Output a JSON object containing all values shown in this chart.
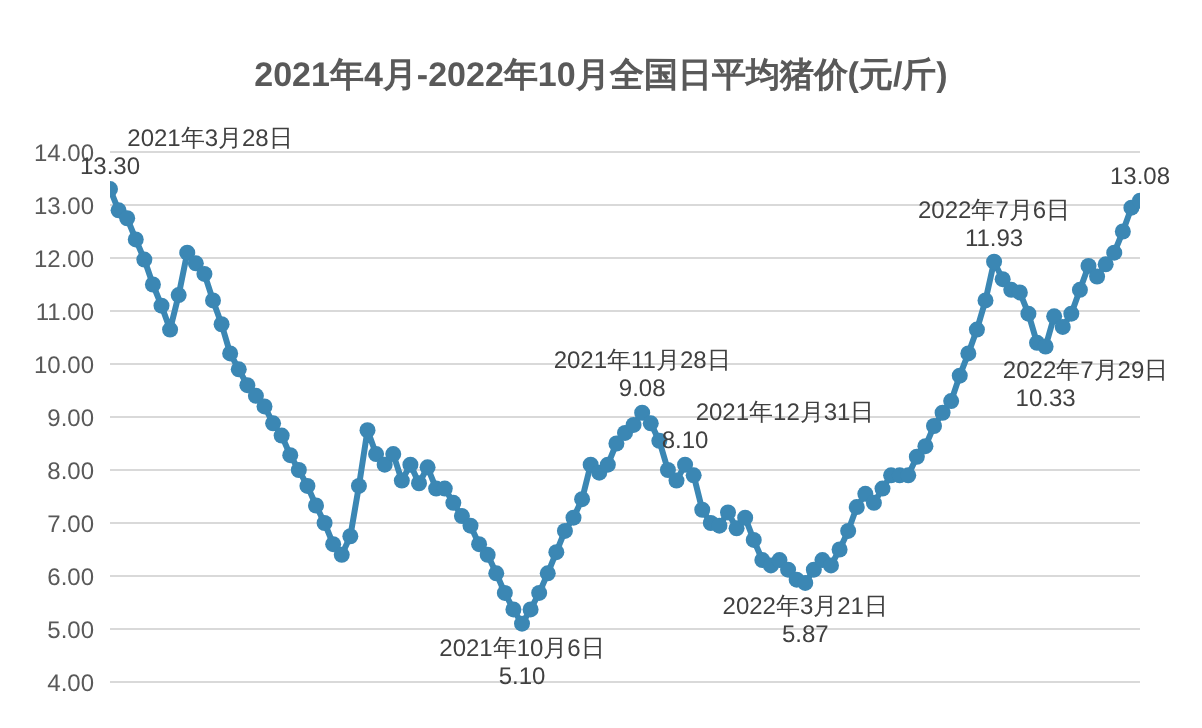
{
  "chart_data": {
    "type": "line",
    "title": "2021年4月-2022年10月全国日平均猪价(元/斤)",
    "categories": [
      null,
      null,
      null,
      null,
      null,
      null,
      null,
      null,
      null,
      null,
      null,
      null,
      null,
      null,
      null,
      null,
      null,
      null,
      null,
      null,
      null,
      null,
      null,
      null,
      null,
      null,
      null,
      null,
      null,
      null,
      null,
      null,
      null,
      null,
      null,
      null,
      null,
      null,
      null,
      null,
      null,
      null,
      null,
      null,
      null,
      null,
      null,
      null,
      null,
      null,
      null,
      null,
      null,
      null,
      null,
      null,
      null,
      null,
      null,
      null,
      null,
      null,
      null,
      null,
      null,
      null,
      null,
      null,
      null,
      null,
      null,
      null,
      null,
      null,
      null,
      null,
      null,
      null,
      null,
      null,
      null,
      null,
      null,
      null,
      null,
      null,
      null,
      null,
      null,
      null,
      null,
      null,
      null,
      null,
      null,
      null,
      null,
      null,
      null,
      null,
      null,
      null,
      null,
      null,
      null,
      null,
      null,
      null,
      null,
      null,
      null,
      null,
      null,
      null,
      null,
      null,
      null,
      null,
      null,
      null,
      null
    ],
    "values": [
      13.3,
      12.9,
      12.75,
      12.35,
      11.97,
      11.5,
      11.1,
      10.65,
      11.3,
      12.1,
      11.9,
      11.7,
      11.2,
      10.75,
      10.2,
      9.9,
      9.6,
      9.4,
      9.2,
      8.88,
      8.65,
      8.28,
      8.0,
      7.7,
      7.33,
      7.0,
      6.6,
      6.4,
      6.75,
      7.7,
      8.75,
      8.3,
      8.1,
      8.3,
      7.8,
      8.1,
      7.75,
      8.05,
      7.65,
      7.65,
      7.38,
      7.13,
      6.95,
      6.6,
      6.4,
      6.05,
      5.68,
      5.37,
      5.1,
      5.37,
      5.68,
      6.05,
      6.45,
      6.85,
      7.1,
      7.45,
      8.1,
      7.95,
      8.1,
      8.5,
      8.7,
      8.85,
      9.08,
      8.88,
      8.55,
      8.0,
      7.8,
      8.1,
      7.9,
      7.25,
      7.0,
      6.95,
      7.2,
      6.9,
      7.1,
      6.68,
      6.3,
      6.2,
      6.3,
      6.12,
      5.93,
      5.87,
      6.12,
      6.3,
      6.2,
      6.5,
      6.85,
      7.3,
      7.55,
      7.38,
      7.65,
      7.9,
      7.9,
      7.9,
      8.25,
      8.45,
      8.83,
      9.08,
      9.3,
      9.78,
      10.2,
      10.65,
      11.2,
      11.93,
      11.6,
      11.4,
      11.35,
      10.95,
      10.4,
      10.33,
      10.9,
      10.7,
      10.95,
      11.4,
      11.85,
      11.65,
      11.88,
      12.1,
      12.5,
      12.95,
      13.08
    ],
    "value_labels": [
      "13.30",
      null,
      null,
      null,
      null,
      null,
      null,
      null,
      null,
      null,
      null,
      null,
      null,
      null,
      null,
      null,
      null,
      null,
      null,
      null,
      null,
      null,
      null,
      null,
      null,
      null,
      null,
      null,
      null,
      null,
      null,
      null,
      null,
      null,
      null,
      null,
      null,
      null,
      null,
      null,
      null,
      null,
      null,
      null,
      null,
      null,
      null,
      null,
      "5.10",
      null,
      null,
      null,
      null,
      null,
      null,
      null,
      null,
      null,
      null,
      null,
      null,
      null,
      "9.08",
      null,
      null,
      null,
      null,
      "8.10",
      null,
      null,
      null,
      null,
      null,
      null,
      null,
      null,
      null,
      null,
      null,
      null,
      null,
      "5.87",
      null,
      null,
      null,
      null,
      null,
      null,
      null,
      null,
      null,
      null,
      null,
      null,
      null,
      null,
      null,
      null,
      null,
      null,
      null,
      null,
      null,
      "11.93",
      null,
      null,
      null,
      null,
      null,
      "10.33",
      null,
      null,
      null,
      null,
      null,
      null,
      null,
      null,
      null,
      null,
      "13.08"
    ],
    "annotations": [
      "2021年3月28日",
      "2021年10月6日",
      "2021年11月28日",
      "2021年12月31日",
      "2022年3月21日",
      "2022年7月6日",
      "2022年7月29日"
    ],
    "color": "#3b87b4",
    "marker": "circle",
    "ylim": [
      4,
      14
    ],
    "yticks": [
      {
        "value": 4,
        "label": "4.00"
      },
      {
        "value": 5,
        "label": "5.00"
      },
      {
        "value": 6,
        "label": "6.00"
      },
      {
        "value": 7,
        "label": "7.00"
      },
      {
        "value": 8,
        "label": "8.00"
      },
      {
        "value": 9,
        "label": "9.00"
      },
      {
        "value": 10,
        "label": "10.00"
      },
      {
        "value": 11,
        "label": "11.00"
      },
      {
        "value": 12,
        "label": "12.00"
      },
      {
        "value": 13,
        "label": "13.00"
      },
      {
        "value": 14,
        "label": "14.00"
      }
    ],
    "grid": "y",
    "tick_labels": "y"
  }
}
